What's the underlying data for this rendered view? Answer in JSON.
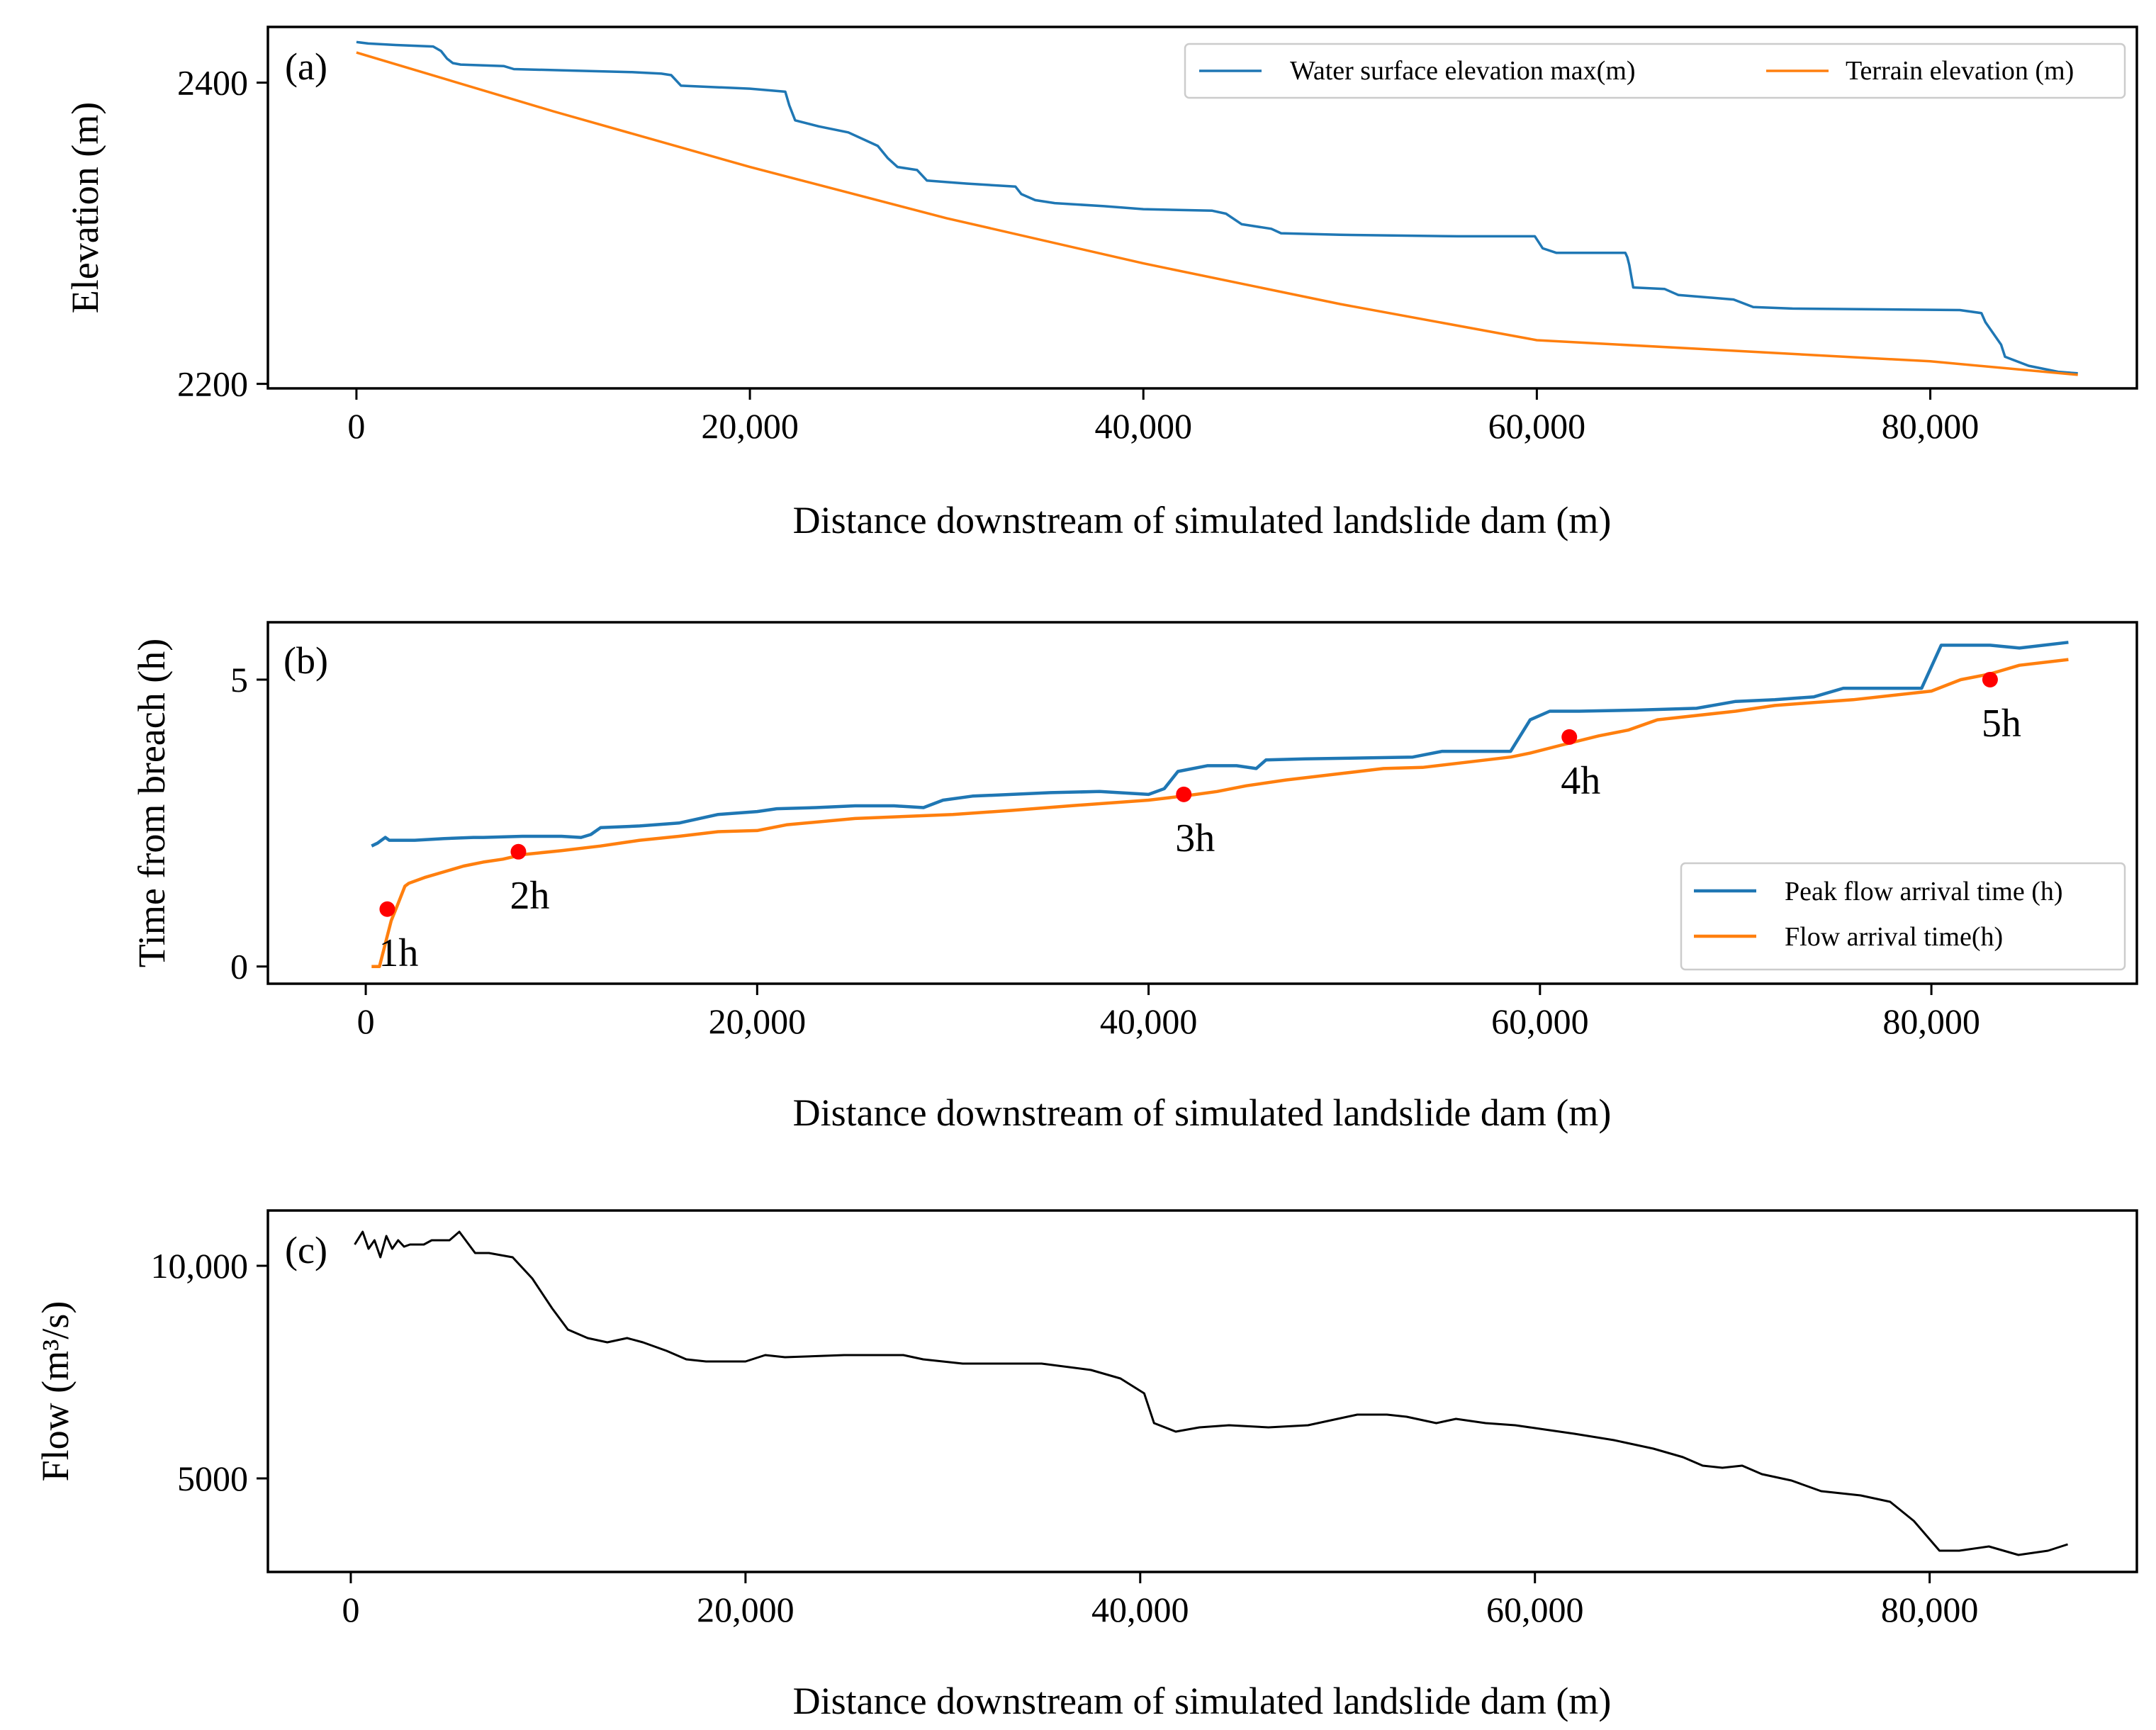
{
  "colors": {
    "water": "#1f77b4",
    "terrain": "#ff7f0e",
    "flow": "#000000",
    "marker": "#ff0000"
  },
  "chart_data": [
    {
      "type": "line",
      "panel": "(a)",
      "xlabel": "Distance downstream of simulated landslide dam (m)",
      "ylabel": "Elevation (m)",
      "xlim": [
        -4500,
        90500
      ],
      "ylim": [
        2197,
        2437
      ],
      "xticks": [
        0,
        20000,
        40000,
        60000,
        80000
      ],
      "xtick_labels": [
        "0",
        "20,000",
        "40,000",
        "60,000",
        "80,000"
      ],
      "yticks": [
        2200,
        2400
      ],
      "ytick_labels": [
        "2200",
        "2400"
      ],
      "legend": {
        "placement": "top-right",
        "columns": 2
      },
      "series": [
        {
          "name": "Water surface elevation max(m)",
          "color": "#1f77b4",
          "x": [
            0,
            600,
            2000,
            3900,
            4300,
            4600,
            4900,
            5300,
            7500,
            8000,
            11000,
            14000,
            15500,
            16000,
            16500,
            20000,
            21800,
            22000,
            22300,
            23500,
            25000,
            26500,
            27000,
            27500,
            28500,
            29000,
            31000,
            33500,
            33800,
            34500,
            35500,
            38000,
            40000,
            43500,
            44200,
            45000,
            46500,
            47000,
            50000,
            56000,
            59900,
            60300,
            61000,
            64500,
            64600,
            64700,
            64900,
            66500,
            67200,
            70000,
            71000,
            73000,
            81500,
            82600,
            82800,
            83600,
            83800,
            85000,
            86500,
            87500
          ],
          "y": [
            2427,
            2426,
            2425,
            2424,
            2421,
            2416,
            2413,
            2412,
            2411,
            2409,
            2408,
            2407,
            2406,
            2405,
            2398,
            2396,
            2394,
            2385,
            2375,
            2371,
            2367,
            2358,
            2350,
            2344,
            2342,
            2335,
            2333,
            2331,
            2326,
            2322,
            2320,
            2318,
            2316,
            2315,
            2313,
            2306,
            2303,
            2300,
            2299,
            2298,
            2298,
            2290,
            2287,
            2287,
            2284,
            2279,
            2264,
            2263,
            2259,
            2256,
            2251,
            2250,
            2249,
            2247,
            2241,
            2226,
            2218,
            2212,
            2208,
            2207
          ]
        },
        {
          "name": "Terrain elevation (m)",
          "color": "#ff7f0e",
          "x": [
            0,
            10000,
            20000,
            30000,
            40000,
            50000,
            60000,
            70000,
            80000,
            87500
          ],
          "y": [
            2420,
            2381,
            2344,
            2310,
            2280,
            2253,
            2229,
            2222,
            2215,
            2206
          ]
        }
      ]
    },
    {
      "type": "line",
      "panel": "(b)",
      "xlabel": "Distance downstream of simulated landslide dam (m)",
      "ylabel": "Time from breach (h)",
      "xlim": [
        -5000,
        90500
      ],
      "ylim": [
        -0.3,
        6.0
      ],
      "xticks": [
        0,
        20000,
        40000,
        60000,
        80000
      ],
      "xtick_labels": [
        "0",
        "20,000",
        "40,000",
        "60,000",
        "80,000"
      ],
      "yticks": [
        0,
        5
      ],
      "ytick_labels": [
        "0",
        "5"
      ],
      "legend": {
        "placement": "lower-right",
        "columns": 1
      },
      "series": [
        {
          "name": "Peak flow arrival time (h)",
          "color": "#1f77b4",
          "x": [
            300,
            600,
            800,
            1000,
            1200,
            1500,
            2500,
            4000,
            5500,
            6000,
            8000,
            10000,
            11000,
            11500,
            12000,
            14000,
            16000,
            18000,
            20000,
            21000,
            23000,
            25000,
            27000,
            28500,
            29500,
            31000,
            33000,
            35000,
            37500,
            40000,
            40800,
            41500,
            43000,
            44500,
            45500,
            46000,
            48000,
            50000,
            53500,
            55000,
            58500,
            59500,
            60500,
            62000,
            65000,
            68000,
            70000,
            72000,
            74000,
            75500,
            79500,
            80500,
            83000,
            84500,
            87000
          ],
          "y": [
            2.1,
            2.15,
            2.2,
            2.25,
            2.2,
            2.2,
            2.2,
            2.23,
            2.25,
            2.25,
            2.27,
            2.27,
            2.25,
            2.3,
            2.42,
            2.45,
            2.5,
            2.65,
            2.7,
            2.75,
            2.77,
            2.8,
            2.8,
            2.77,
            2.9,
            2.97,
            3.0,
            3.03,
            3.05,
            3.0,
            3.1,
            3.4,
            3.5,
            3.5,
            3.45,
            3.6,
            3.62,
            3.63,
            3.65,
            3.75,
            3.75,
            4.3,
            4.45,
            4.45,
            4.47,
            4.5,
            4.62,
            4.65,
            4.7,
            4.85,
            4.85,
            5.6,
            5.6,
            5.55,
            5.65
          ]
        },
        {
          "name": "Flow arrival time(h)",
          "color": "#ff7f0e",
          "x": [
            300,
            700,
            1000,
            1300,
            1600,
            2000,
            2200,
            3000,
            4000,
            5000,
            6000,
            7000,
            8000,
            10000,
            12000,
            14000,
            16000,
            18000,
            20000,
            21500,
            25000,
            30000,
            33000,
            36000,
            40000,
            42000,
            43500,
            45000,
            47000,
            50000,
            52000,
            54000,
            56000,
            58500,
            59500,
            61000,
            63000,
            64500,
            66000,
            70000,
            72000,
            74000,
            76000,
            80000,
            81500,
            83000,
            84500,
            87000
          ],
          "y": [
            0,
            0,
            0.4,
            0.8,
            1.05,
            1.4,
            1.45,
            1.55,
            1.65,
            1.75,
            1.82,
            1.87,
            1.95,
            2.02,
            2.1,
            2.2,
            2.27,
            2.35,
            2.37,
            2.47,
            2.58,
            2.65,
            2.72,
            2.8,
            2.9,
            2.98,
            3.05,
            3.15,
            3.25,
            3.37,
            3.45,
            3.47,
            3.55,
            3.65,
            3.72,
            3.85,
            4.02,
            4.12,
            4.3,
            4.45,
            4.55,
            4.6,
            4.65,
            4.8,
            5.0,
            5.1,
            5.25,
            5.35
          ]
        }
      ],
      "annotations": [
        {
          "label": "1h",
          "x": 1100,
          "y": 1.0
        },
        {
          "label": "2h",
          "x": 7800,
          "y": 2.0
        },
        {
          "label": "3h",
          "x": 41800,
          "y": 3.0
        },
        {
          "label": "4h",
          "x": 61500,
          "y": 4.0
        },
        {
          "label": "5h",
          "x": 83000,
          "y": 5.0
        }
      ]
    },
    {
      "type": "line",
      "panel": "(c)",
      "xlabel": "Distance downstream of simulated landslide dam (m)",
      "ylabel": "Flow (m³/s)",
      "xlim": [
        -4200,
        90500
      ],
      "ylim": [
        2800,
        11300
      ],
      "xticks": [
        0,
        20000,
        40000,
        60000,
        80000
      ],
      "xtick_labels": [
        "0",
        "20,000",
        "40,000",
        "60,000",
        "80,000"
      ],
      "yticks": [
        5000,
        10000
      ],
      "ytick_labels": [
        "5000",
        "10,000"
      ],
      "series": [
        {
          "name": "",
          "color": "#000000",
          "x": [
            200,
            600,
            900,
            1200,
            1500,
            1800,
            2100,
            2400,
            2700,
            3000,
            3300,
            3700,
            4100,
            4500,
            5000,
            5500,
            6300,
            7000,
            8200,
            9200,
            10200,
            11000,
            12000,
            13000,
            14000,
            14800,
            16000,
            17000,
            18000,
            20000,
            21000,
            22000,
            25000,
            28000,
            29000,
            31000,
            32500,
            35000,
            37500,
            39000,
            40200,
            40700,
            41800,
            43000,
            44500,
            46500,
            48500,
            51000,
            52500,
            53500,
            55000,
            56000,
            57500,
            59000,
            60500,
            62000,
            64000,
            66000,
            67500,
            68500,
            69500,
            70500,
            71500,
            73000,
            74500,
            76500,
            78000,
            79200,
            80500,
            81500,
            83000,
            84500,
            86000,
            87000
          ],
          "y": [
            10500,
            10800,
            10400,
            10600,
            10200,
            10700,
            10400,
            10600,
            10450,
            10500,
            10500,
            10500,
            10600,
            10600,
            10600,
            10800,
            10300,
            10300,
            10200,
            9700,
            9000,
            8500,
            8300,
            8200,
            8300,
            8200,
            8000,
            7800,
            7750,
            7750,
            7900,
            7850,
            7900,
            7900,
            7800,
            7700,
            7700,
            7700,
            7550,
            7350,
            7000,
            6300,
            6100,
            6200,
            6250,
            6200,
            6250,
            6500,
            6500,
            6450,
            6300,
            6400,
            6300,
            6250,
            6150,
            6050,
            5900,
            5700,
            5500,
            5300,
            5250,
            5300,
            5100,
            4950,
            4700,
            4600,
            4450,
            4000,
            3300,
            3300,
            3400,
            3200,
            3300,
            3450
          ]
        }
      ]
    }
  ]
}
